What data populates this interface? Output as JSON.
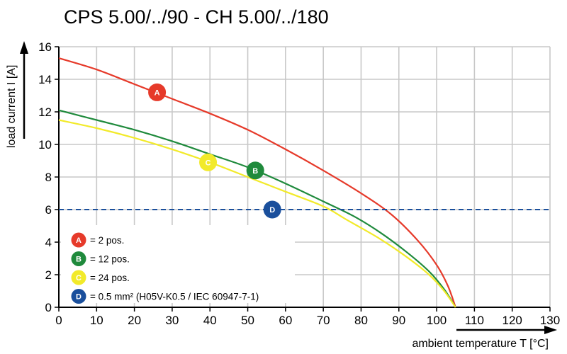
{
  "chart_data": {
    "type": "line",
    "title": "CPS 5.00/../90 - CH 5.00/../180",
    "xlabel": "ambient temperature T [°C]",
    "ylabel": "load current I [A]",
    "xlim": [
      0,
      130
    ],
    "ylim": [
      0,
      16
    ],
    "x_ticks": [
      "0",
      "10",
      "20",
      "30",
      "40",
      "50",
      "60",
      "70",
      "80",
      "90",
      "100",
      "110",
      "120",
      "130"
    ],
    "y_ticks": [
      "0",
      "2",
      "4",
      "6",
      "8",
      "10",
      "12",
      "14",
      "16"
    ],
    "grid": true,
    "series": [
      {
        "name": "A",
        "color": "#e63a2a",
        "x": [
          0,
          10,
          20,
          30,
          40,
          50,
          60,
          70,
          80,
          88,
          95,
          100,
          103,
          105
        ],
        "y": [
          15.3,
          14.6,
          13.7,
          12.8,
          11.9,
          10.9,
          9.7,
          8.4,
          7.0,
          5.7,
          4.1,
          2.6,
          1.3,
          0
        ]
      },
      {
        "name": "B",
        "color": "#1f8a3c",
        "x": [
          0,
          10,
          20,
          30,
          40,
          50,
          60,
          70,
          78,
          85,
          92,
          98,
          102,
          105
        ],
        "y": [
          12.1,
          11.5,
          10.9,
          10.2,
          9.4,
          8.6,
          7.6,
          6.5,
          5.6,
          4.6,
          3.4,
          2.2,
          1.1,
          0
        ]
      },
      {
        "name": "C",
        "color": "#f2ea2a",
        "x": [
          0,
          10,
          20,
          30,
          40,
          50,
          60,
          70,
          76,
          85,
          92,
          98,
          102,
          105
        ],
        "y": [
          11.5,
          11.0,
          10.4,
          9.7,
          8.9,
          8.0,
          7.1,
          6.2,
          5.4,
          4.2,
          3.1,
          2.0,
          1.0,
          0
        ]
      },
      {
        "name": "D",
        "color": "#1a4f9c",
        "dashed": true,
        "x": [
          0,
          130
        ],
        "y": [
          6,
          6
        ]
      }
    ],
    "markers": [
      {
        "label": "A",
        "x": 26,
        "y": 13.2,
        "color": "#e63a2a",
        "text_color": "#ffffff"
      },
      {
        "label": "B",
        "x": 52,
        "y": 8.4,
        "color": "#1f8a3c",
        "text_color": "#ffffff"
      },
      {
        "label": "C",
        "x": 39.5,
        "y": 8.9,
        "color": "#f2ea2a",
        "text_color": "#ffffff"
      },
      {
        "label": "D",
        "x": 56.5,
        "y": 6.0,
        "color": "#1a4f9c",
        "text_color": "#ffffff"
      }
    ],
    "legend": {
      "placement": "bottom-left",
      "entries": [
        {
          "badge": "A",
          "color": "#e63a2a",
          "text": "= 2 pos."
        },
        {
          "badge": "B",
          "color": "#1f8a3c",
          "text": "= 12 pos."
        },
        {
          "badge": "C",
          "color": "#f2ea2a",
          "text": "= 24 pos."
        },
        {
          "badge": "D",
          "color": "#1a4f9c",
          "text": "= 0.5 mm² (H05V-K0.5 / IEC 60947-7-1)"
        }
      ]
    }
  }
}
